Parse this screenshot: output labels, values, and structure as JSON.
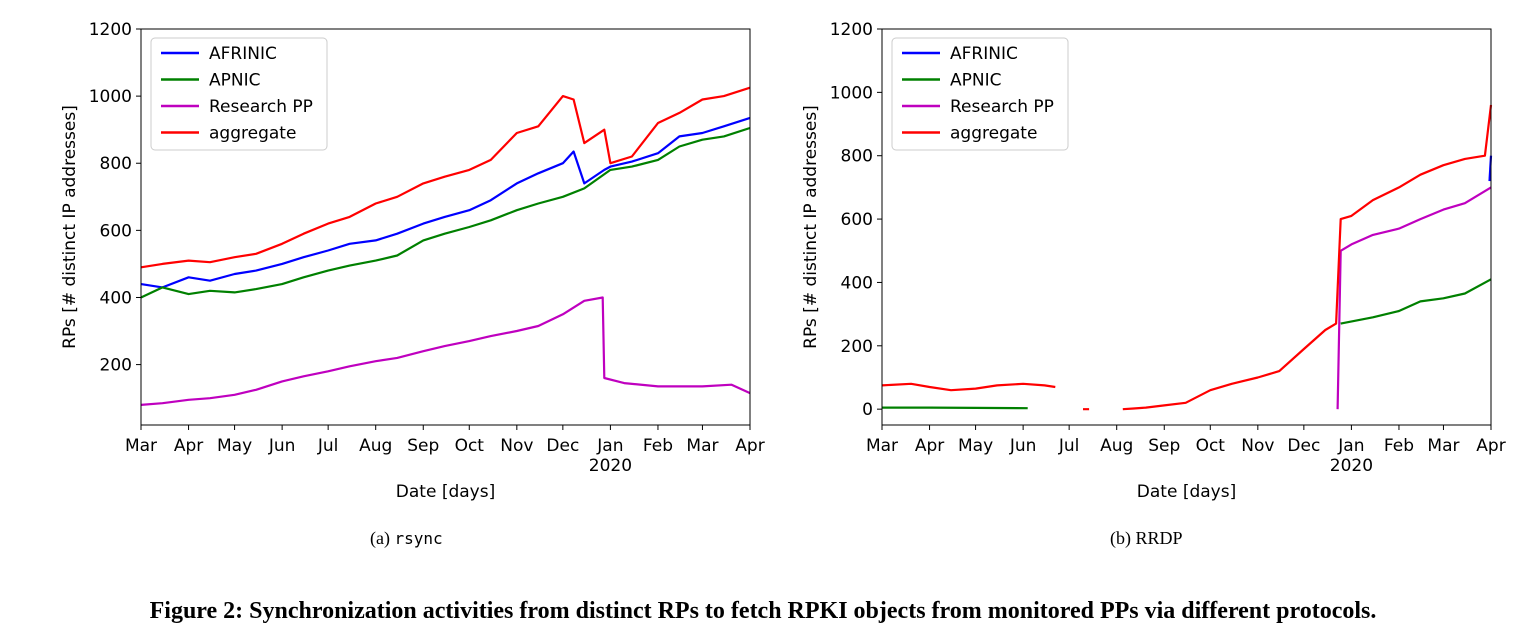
{
  "figure_caption": "Figure 2: Synchronization activities from distinct RPs to fetch RPKI objects from monitored PPs via different protocols.",
  "subcaptions": [
    {
      "label": "(a)",
      "text": "rsync"
    },
    {
      "label": "(b)",
      "text": "RRDP"
    }
  ],
  "chart_data": [
    {
      "type": "line",
      "xlabel": "Date [days]",
      "ylabel": "RPs [# distinct IP addresses]",
      "ylim": [
        20,
        1200
      ],
      "yticks": [
        200,
        400,
        600,
        800,
        1000,
        1200
      ],
      "x_start": "2019-03-01",
      "x_end": "2020-04-01",
      "xticks": [
        {
          "date": "2019-03-01",
          "label": "Mar"
        },
        {
          "date": "2019-04-01",
          "label": "Apr"
        },
        {
          "date": "2019-05-01",
          "label": "May"
        },
        {
          "date": "2019-06-01",
          "label": "Jun"
        },
        {
          "date": "2019-07-01",
          "label": "Jul"
        },
        {
          "date": "2019-08-01",
          "label": "Aug"
        },
        {
          "date": "2019-09-01",
          "label": "Sep"
        },
        {
          "date": "2019-10-01",
          "label": "Oct"
        },
        {
          "date": "2019-11-01",
          "label": "Nov"
        },
        {
          "date": "2019-12-01",
          "label": "Dec"
        },
        {
          "date": "2020-01-01",
          "label": "Jan",
          "sublabel": "2020"
        },
        {
          "date": "2020-02-01",
          "label": "Feb"
        },
        {
          "date": "2020-03-01",
          "label": "Mar"
        },
        {
          "date": "2020-04-01",
          "label": "Apr"
        }
      ],
      "legend": "top-left",
      "series": [
        {
          "name": "AFRINIC",
          "color": "#0000ff",
          "points": [
            [
              "2019-03-01",
              440
            ],
            [
              "2019-03-15",
              430
            ],
            [
              "2019-04-01",
              460
            ],
            [
              "2019-04-15",
              450
            ],
            [
              "2019-05-01",
              470
            ],
            [
              "2019-05-15",
              480
            ],
            [
              "2019-06-01",
              500
            ],
            [
              "2019-06-15",
              520
            ],
            [
              "2019-07-01",
              540
            ],
            [
              "2019-07-15",
              560
            ],
            [
              "2019-08-01",
              570
            ],
            [
              "2019-08-15",
              590
            ],
            [
              "2019-09-01",
              620
            ],
            [
              "2019-09-15",
              640
            ],
            [
              "2019-10-01",
              660
            ],
            [
              "2019-10-15",
              690
            ],
            [
              "2019-11-01",
              740
            ],
            [
              "2019-11-15",
              770
            ],
            [
              "2019-12-01",
              800
            ],
            [
              "2019-12-08",
              835
            ],
            [
              "2019-12-15",
              740
            ],
            [
              "2019-12-28",
              780
            ],
            [
              "2020-01-01",
              790
            ],
            [
              "2020-01-15",
              805
            ],
            [
              "2020-02-01",
              830
            ],
            [
              "2020-02-15",
              880
            ],
            [
              "2020-03-01",
              890
            ],
            [
              "2020-03-15",
              910
            ],
            [
              "2020-04-01",
              935
            ]
          ]
        },
        {
          "name": "APNIC",
          "color": "#008000",
          "points": [
            [
              "2019-03-01",
              400
            ],
            [
              "2019-03-15",
              430
            ],
            [
              "2019-04-01",
              410
            ],
            [
              "2019-04-15",
              420
            ],
            [
              "2019-05-01",
              415
            ],
            [
              "2019-05-15",
              425
            ],
            [
              "2019-06-01",
              440
            ],
            [
              "2019-06-15",
              460
            ],
            [
              "2019-07-01",
              480
            ],
            [
              "2019-07-15",
              495
            ],
            [
              "2019-08-01",
              510
            ],
            [
              "2019-08-15",
              525
            ],
            [
              "2019-09-01",
              570
            ],
            [
              "2019-09-15",
              590
            ],
            [
              "2019-10-01",
              610
            ],
            [
              "2019-10-15",
              630
            ],
            [
              "2019-11-01",
              660
            ],
            [
              "2019-11-15",
              680
            ],
            [
              "2019-12-01",
              700
            ],
            [
              "2019-12-15",
              725
            ],
            [
              "2020-01-01",
              780
            ],
            [
              "2020-01-15",
              790
            ],
            [
              "2020-02-01",
              810
            ],
            [
              "2020-02-15",
              850
            ],
            [
              "2020-03-01",
              870
            ],
            [
              "2020-03-15",
              880
            ],
            [
              "2020-04-01",
              905
            ]
          ]
        },
        {
          "name": "Research PP",
          "color": "#bf00bf",
          "points": [
            [
              "2019-03-01",
              80
            ],
            [
              "2019-03-15",
              85
            ],
            [
              "2019-04-01",
              95
            ],
            [
              "2019-04-15",
              100
            ],
            [
              "2019-05-01",
              110
            ],
            [
              "2019-05-15",
              125
            ],
            [
              "2019-06-01",
              150
            ],
            [
              "2019-06-15",
              165
            ],
            [
              "2019-07-01",
              180
            ],
            [
              "2019-07-15",
              195
            ],
            [
              "2019-08-01",
              210
            ],
            [
              "2019-08-15",
              220
            ],
            [
              "2019-09-01",
              240
            ],
            [
              "2019-09-15",
              255
            ],
            [
              "2019-10-01",
              270
            ],
            [
              "2019-10-15",
              285
            ],
            [
              "2019-11-01",
              300
            ],
            [
              "2019-11-15",
              315
            ],
            [
              "2019-12-01",
              350
            ],
            [
              "2019-12-15",
              390
            ],
            [
              "2019-12-27",
              400
            ],
            [
              "2019-12-28",
              160
            ],
            [
              "2020-01-10",
              145
            ],
            [
              "2020-02-01",
              135
            ],
            [
              "2020-03-01",
              135
            ],
            [
              "2020-03-20",
              140
            ],
            [
              "2020-04-01",
              115
            ]
          ]
        },
        {
          "name": "aggregate",
          "color": "#ff0000",
          "points": [
            [
              "2019-03-01",
              490
            ],
            [
              "2019-03-15",
              500
            ],
            [
              "2019-04-01",
              510
            ],
            [
              "2019-04-15",
              505
            ],
            [
              "2019-05-01",
              520
            ],
            [
              "2019-05-15",
              530
            ],
            [
              "2019-06-01",
              560
            ],
            [
              "2019-06-15",
              590
            ],
            [
              "2019-07-01",
              620
            ],
            [
              "2019-07-15",
              640
            ],
            [
              "2019-08-01",
              680
            ],
            [
              "2019-08-15",
              700
            ],
            [
              "2019-09-01",
              740
            ],
            [
              "2019-09-15",
              760
            ],
            [
              "2019-10-01",
              780
            ],
            [
              "2019-10-15",
              810
            ],
            [
              "2019-11-01",
              890
            ],
            [
              "2019-11-15",
              910
            ],
            [
              "2019-12-01",
              1000
            ],
            [
              "2019-12-08",
              990
            ],
            [
              "2019-12-15",
              860
            ],
            [
              "2019-12-28",
              900
            ],
            [
              "2020-01-01",
              800
            ],
            [
              "2020-01-15",
              820
            ],
            [
              "2020-02-01",
              920
            ],
            [
              "2020-02-15",
              950
            ],
            [
              "2020-03-01",
              990
            ],
            [
              "2020-03-15",
              1000
            ],
            [
              "2020-04-01",
              1025
            ]
          ]
        }
      ]
    },
    {
      "type": "line",
      "xlabel": "Date [days]",
      "ylabel": "RPs [# distinct IP addresses]",
      "ylim": [
        -50,
        1200
      ],
      "yticks": [
        0,
        200,
        400,
        600,
        800,
        1000,
        1200
      ],
      "x_start": "2019-03-01",
      "x_end": "2020-04-01",
      "xticks": [
        {
          "date": "2019-03-01",
          "label": "Mar"
        },
        {
          "date": "2019-04-01",
          "label": "Apr"
        },
        {
          "date": "2019-05-01",
          "label": "May"
        },
        {
          "date": "2019-06-01",
          "label": "Jun"
        },
        {
          "date": "2019-07-01",
          "label": "Jul"
        },
        {
          "date": "2019-08-01",
          "label": "Aug"
        },
        {
          "date": "2019-09-01",
          "label": "Sep"
        },
        {
          "date": "2019-10-01",
          "label": "Oct"
        },
        {
          "date": "2019-11-01",
          "label": "Nov"
        },
        {
          "date": "2019-12-01",
          "label": "Dec"
        },
        {
          "date": "2020-01-01",
          "label": "Jan",
          "sublabel": "2020"
        },
        {
          "date": "2020-02-01",
          "label": "Feb"
        },
        {
          "date": "2020-03-01",
          "label": "Mar"
        },
        {
          "date": "2020-04-01",
          "label": "Apr"
        }
      ],
      "legend": "top-left",
      "series": [
        {
          "name": "AFRINIC",
          "color": "#0000ff",
          "points": [
            [
              "2020-03-31",
              720
            ],
            [
              "2020-04-01",
              800
            ]
          ]
        },
        {
          "name": "APNIC",
          "color": "#008000",
          "points": [
            [
              "2019-03-01",
              5
            ],
            [
              "2019-04-01",
              5
            ],
            [
              "2019-05-01",
              4
            ],
            [
              "2019-06-04",
              3
            ],
            null,
            [
              "2019-12-25",
              270
            ],
            [
              "2020-01-15",
              290
            ],
            [
              "2020-02-01",
              310
            ],
            [
              "2020-02-15",
              340
            ],
            [
              "2020-03-01",
              350
            ],
            [
              "2020-03-15",
              365
            ],
            [
              "2020-04-01",
              410
            ]
          ]
        },
        {
          "name": "Research PP",
          "color": "#bf00bf",
          "points": [
            [
              "2019-12-23",
              0
            ],
            [
              "2019-12-25",
              500
            ],
            [
              "2020-01-01",
              520
            ],
            [
              "2020-01-15",
              550
            ],
            [
              "2020-02-01",
              570
            ],
            [
              "2020-02-15",
              600
            ],
            [
              "2020-03-01",
              630
            ],
            [
              "2020-03-15",
              650
            ],
            [
              "2020-04-01",
              700
            ]
          ]
        },
        {
          "name": "aggregate",
          "color": "#ff0000",
          "points": [
            [
              "2019-03-01",
              75
            ],
            [
              "2019-03-20",
              80
            ],
            [
              "2019-04-01",
              70
            ],
            [
              "2019-04-15",
              60
            ],
            [
              "2019-05-01",
              65
            ],
            [
              "2019-05-15",
              75
            ],
            [
              "2019-06-01",
              80
            ],
            [
              "2019-06-15",
              75
            ],
            [
              "2019-06-22",
              70
            ],
            null,
            [
              "2019-07-10",
              0
            ],
            [
              "2019-07-14",
              0
            ],
            null,
            [
              "2019-08-05",
              0
            ],
            [
              "2019-08-12",
              2
            ],
            [
              "2019-08-20",
              5
            ],
            [
              "2019-09-01",
              12
            ],
            [
              "2019-09-15",
              20
            ],
            [
              "2019-10-01",
              60
            ],
            [
              "2019-10-15",
              80
            ],
            [
              "2019-11-01",
              100
            ],
            [
              "2019-11-15",
              120
            ],
            [
              "2019-12-01",
              190
            ],
            [
              "2019-12-15",
              250
            ],
            [
              "2019-12-22",
              270
            ],
            [
              "2019-12-25",
              600
            ],
            [
              "2020-01-01",
              610
            ],
            [
              "2020-01-15",
              660
            ],
            [
              "2020-02-01",
              700
            ],
            [
              "2020-02-15",
              740
            ],
            [
              "2020-03-01",
              770
            ],
            [
              "2020-03-15",
              790
            ],
            [
              "2020-03-28",
              800
            ],
            [
              "2020-04-01",
              960
            ]
          ]
        }
      ]
    }
  ]
}
